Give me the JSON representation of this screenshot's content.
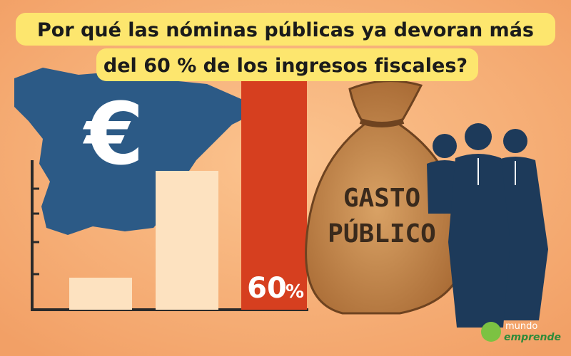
{
  "header": {
    "title_lines": [
      "Por qué las nóminas públicas ya devoran más",
      "del 60 % de los ingresos fiscales?"
    ]
  },
  "illustration": {
    "currency_symbol": "€",
    "badge_number": "60",
    "badge_unit": "%",
    "bag_lines": [
      "GASTO",
      "PÚBLICO"
    ]
  },
  "logo": {
    "top": "mundo",
    "bottom": "emprende"
  }
}
